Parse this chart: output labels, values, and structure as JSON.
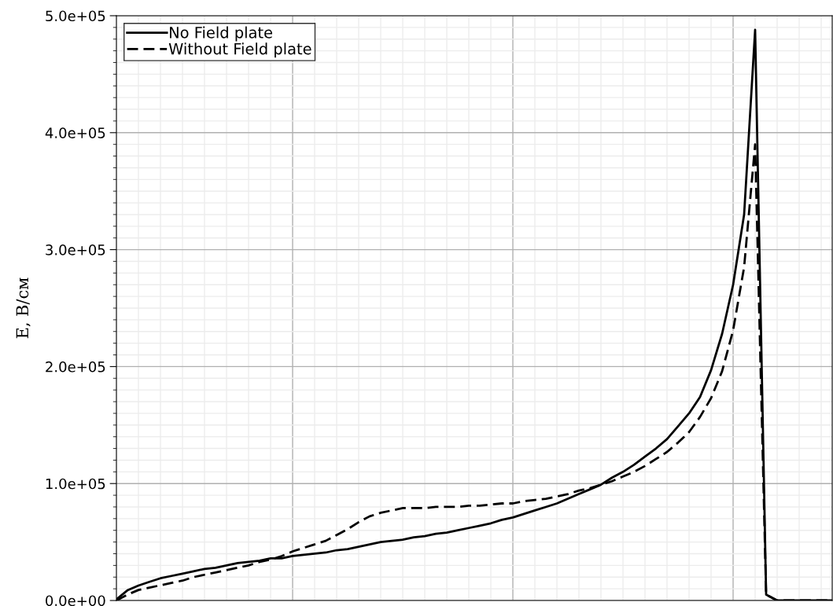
{
  "chart_data": {
    "type": "line",
    "ylabel": "E, В/см",
    "categories": [
      null,
      null,
      null,
      null,
      null,
      null,
      null,
      null,
      null,
      null,
      null,
      null,
      null,
      null,
      null,
      null,
      null,
      null,
      null,
      null,
      null,
      null,
      null,
      null,
      null,
      null,
      null,
      null,
      null,
      null,
      null,
      null,
      null,
      null,
      null,
      null,
      null,
      null,
      null,
      null,
      null,
      null,
      null,
      null,
      null,
      null,
      null,
      null,
      null,
      null,
      null,
      null,
      null,
      null,
      null,
      null,
      null,
      null,
      null,
      null,
      null,
      null,
      null,
      null,
      null,
      null
    ],
    "series": [
      {
        "name": "No Field plate",
        "color": "#000000",
        "line_style": "solid",
        "values": [
          1000,
          8700,
          12800,
          16000,
          19000,
          21000,
          23000,
          25000,
          27000,
          28000,
          30000,
          32000,
          33000,
          34000,
          36000,
          36000,
          38000,
          39000,
          40000,
          41000,
          43000,
          44000,
          46000,
          48000,
          50000,
          51000,
          52000,
          54000,
          55000,
          57000,
          58000,
          60000,
          62000,
          64000,
          66000,
          69000,
          71000,
          74000,
          77000,
          80000,
          83000,
          87000,
          91000,
          95000,
          99000,
          105000,
          110000,
          116000,
          123000,
          130000,
          138000,
          149000,
          160000,
          174000,
          197000,
          228000,
          270000,
          330000,
          488000,
          5000,
          0,
          0,
          0,
          0,
          0,
          0
        ]
      },
      {
        "name": "Without Field plate",
        "color": "#000000",
        "line_style": "dashed",
        "values": [
          0,
          5000,
          9000,
          11000,
          13000,
          15000,
          17000,
          20000,
          22000,
          24000,
          26000,
          28000,
          30000,
          33000,
          35000,
          38000,
          42000,
          45000,
          48000,
          51000,
          56000,
          61000,
          67000,
          72000,
          75000,
          77000,
          79000,
          79000,
          79000,
          80000,
          80000,
          80000,
          81000,
          81000,
          82000,
          83000,
          83000,
          85000,
          86000,
          87000,
          89000,
          91000,
          94000,
          96000,
          99000,
          102000,
          106000,
          110000,
          115000,
          121000,
          127000,
          135000,
          144000,
          157000,
          173000,
          196000,
          231000,
          285000,
          390000,
          5000,
          0,
          0,
          0,
          0,
          0,
          0
        ]
      }
    ],
    "ylim": [
      0,
      500000
    ],
    "yticks": [
      {
        "value": 0,
        "label": "0.0e+00"
      },
      {
        "value": 100000,
        "label": "1.0e+05"
      },
      {
        "value": 200000,
        "label": "2.0e+05"
      },
      {
        "value": 300000,
        "label": "3.0e+05"
      },
      {
        "value": 400000,
        "label": "4.0e+05"
      },
      {
        "value": 500000,
        "label": "5.0e+05"
      }
    ],
    "grid": true,
    "legend": "top left",
    "tick_labels": "y"
  }
}
